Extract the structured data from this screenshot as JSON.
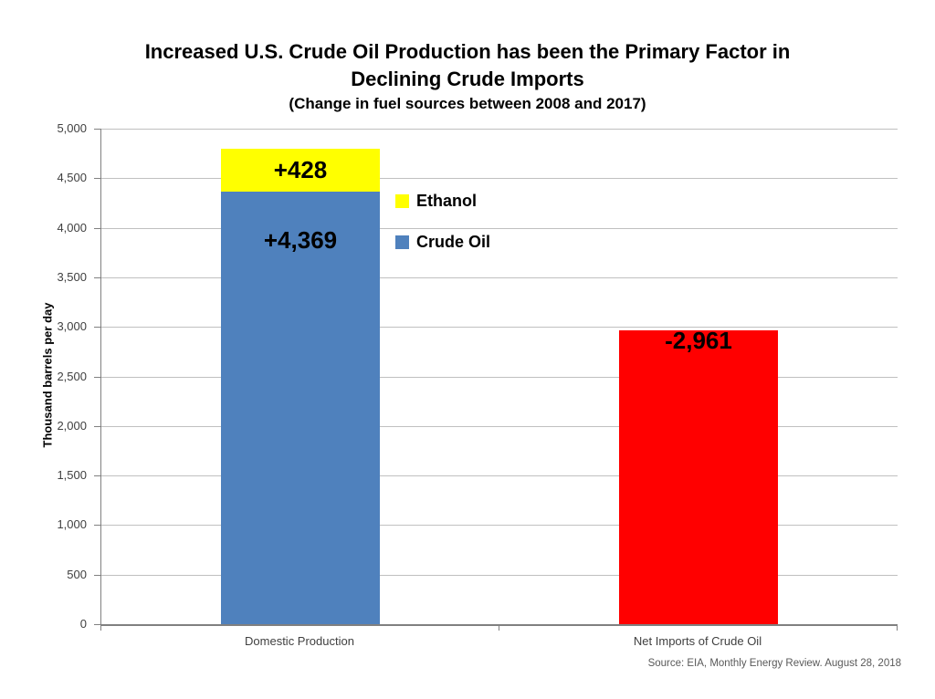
{
  "chart_data": {
    "type": "bar",
    "stacked": true,
    "title": "Increased U.S. Crude Oil Production has been the Primary Factor in Declining Crude Imports",
    "title_lines": [
      "Increased U.S. Crude Oil Production has been the Primary Factor in",
      "Declining Crude Imports"
    ],
    "subtitle": "(Change in fuel sources between 2008 and 2017)",
    "ylabel": "Thousand barrels per day",
    "xlabel": "",
    "ylim": [
      0,
      5000
    ],
    "ytick_step": 500,
    "ytick_labels": [
      "5,000",
      "4,500",
      "4,000",
      "3,500",
      "3,000",
      "2,500",
      "2,000",
      "1,500",
      "1,000",
      "500",
      "0"
    ],
    "grid": true,
    "categories": [
      "Domestic Production",
      "Net Imports of Crude Oil"
    ],
    "bars": [
      {
        "category": "Domestic Production",
        "segments": [
          {
            "name": "Crude Oil",
            "value": 4369,
            "data_label": "+4,369",
            "color": "#4F81BD",
            "label_pos": "upper"
          },
          {
            "name": "Ethanol",
            "value": 428,
            "data_label": "+428",
            "color": "#FFFF00",
            "label_pos": "center"
          }
        ]
      },
      {
        "category": "Net Imports of Crude Oil",
        "segments": [
          {
            "name": "Crude Oil",
            "value": 2961,
            "data_label": "-2,961",
            "color": "#FF0000",
            "label_pos": "top"
          }
        ]
      }
    ],
    "legend": [
      {
        "label": "Ethanol",
        "color": "#FFFF00"
      },
      {
        "label": "Crude Oil",
        "color": "#4F81BD"
      }
    ],
    "legend_position": "inside-upper-left",
    "source": "Source: EIA, Monthly Energy Review. August 28, 2018"
  },
  "colors": {
    "background": "#FFFFFF",
    "gridline": "#C0C0C0",
    "axis": "#808080",
    "tick_label_text": "#404040",
    "title_text": "#000000",
    "data_label_text": "#000000",
    "source_text": "#595959"
  }
}
